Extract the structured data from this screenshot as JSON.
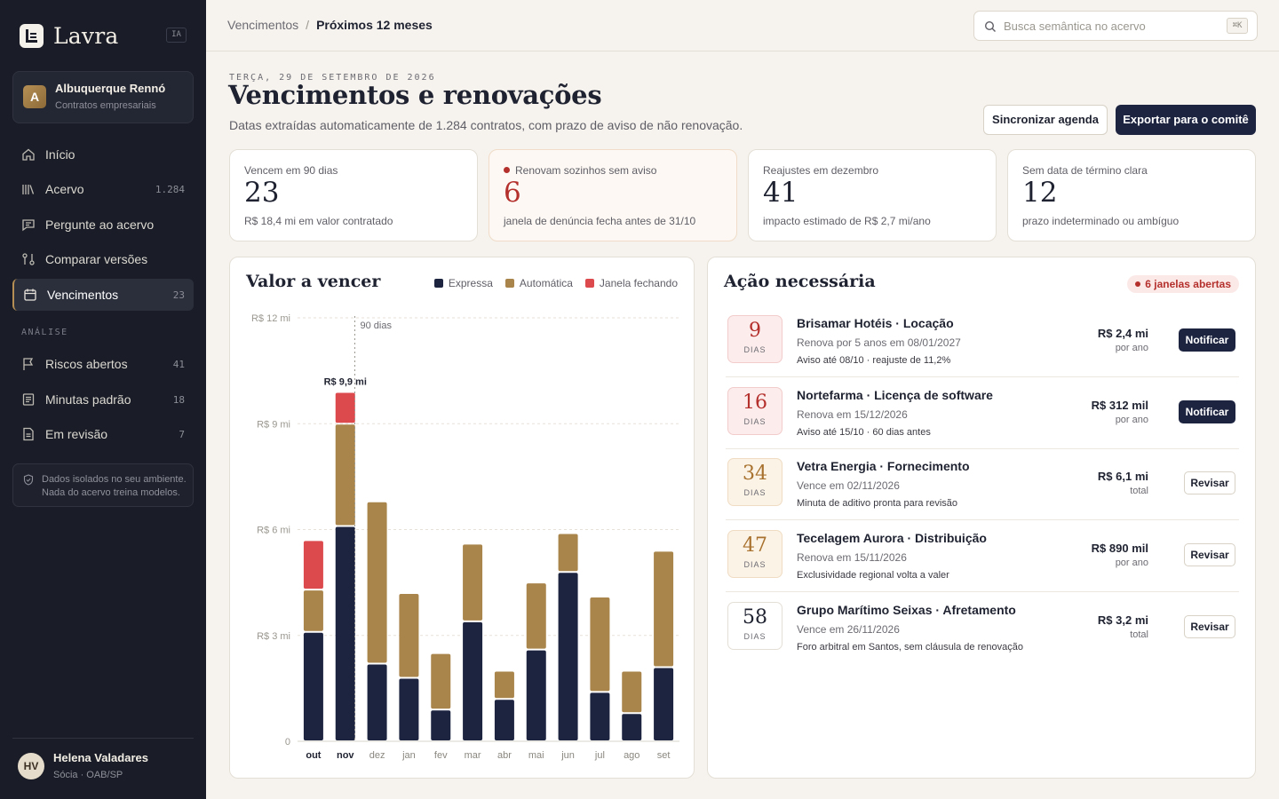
{
  "app": {
    "name": "Lavra",
    "ia_badge": "IA"
  },
  "org": {
    "initial": "A",
    "name": "Albuquerque Rennó",
    "subtitle": "Contratos empresariais"
  },
  "nav": {
    "items": [
      {
        "label": "Início",
        "count": "",
        "icon": "home-icon"
      },
      {
        "label": "Acervo",
        "count": "1.284",
        "icon": "library-icon"
      },
      {
        "label": "Pergunte ao acervo",
        "count": "",
        "icon": "chat-icon"
      },
      {
        "label": "Comparar versões",
        "count": "",
        "icon": "compare-icon"
      },
      {
        "label": "Vencimentos",
        "count": "23",
        "icon": "calendar-icon",
        "active": true
      }
    ],
    "section_label": "ANÁLISE",
    "analysis_items": [
      {
        "label": "Riscos abertos",
        "count": "41",
        "icon": "flag-icon"
      },
      {
        "label": "Minutas padrão",
        "count": "18",
        "icon": "document-icon"
      },
      {
        "label": "Em revisão",
        "count": "7",
        "icon": "file-icon"
      }
    ]
  },
  "privacy": {
    "text": "Dados isolados no seu ambiente. Nada do acervo treina modelos."
  },
  "user": {
    "initials": "HV",
    "name": "Helena Valadares",
    "role": "Sócia · OAB/SP"
  },
  "breadcrumb": {
    "parent": "Vencimentos",
    "separator": "/",
    "current": "Próximos 12 meses"
  },
  "search": {
    "placeholder": "Busca semântica no acervo",
    "shortcut": "⌘K"
  },
  "header": {
    "date": "TERÇA, 29 DE SETEMBRO DE 2026",
    "title": "Vencimentos e renovações",
    "subtitle": "Datas extraídas automaticamente de 1.284 contratos, com prazo de aviso de não renovação.",
    "sync_label": "Sincronizar agenda",
    "export_label": "Exportar para o comitê"
  },
  "stats": [
    {
      "label": "Vencem em 90 dias",
      "value": "23",
      "note": "R$ 18,4 mi em valor contratado"
    },
    {
      "label": "Renovam sozinhos sem aviso",
      "value": "6",
      "note": "janela de denúncia fecha antes de 31/10"
    },
    {
      "label": "Reajustes em dezembro",
      "value": "41",
      "note": "impacto estimado de R$ 2,7 mi/ano"
    },
    {
      "label": "Sem data de término clara",
      "value": "12",
      "note": "prazo indeterminado ou ambíguo"
    }
  ],
  "chart_panel": {
    "title": "Valor a vencer",
    "legend": [
      "Expressa",
      "Automática",
      "Janela fechando"
    ]
  },
  "chart_data": {
    "type": "bar",
    "stacked": true,
    "categories": [
      "out",
      "nov",
      "dez",
      "jan",
      "fev",
      "mar",
      "abr",
      "mai",
      "jun",
      "jul",
      "ago",
      "set"
    ],
    "series": [
      {
        "name": "Expressa",
        "color": "#1d2440",
        "values": [
          3.1,
          6.1,
          2.2,
          1.8,
          0.9,
          3.4,
          1.2,
          2.6,
          4.8,
          1.4,
          0.8,
          2.1
        ]
      },
      {
        "name": "Automática",
        "color": "#a9844b",
        "values": [
          1.2,
          2.9,
          4.6,
          2.4,
          1.6,
          2.2,
          0.8,
          1.9,
          1.1,
          2.7,
          1.2,
          3.3
        ]
      },
      {
        "name": "Janela fechando",
        "color": "#dc4a4e",
        "values": [
          1.4,
          0.9,
          0,
          0,
          0,
          0,
          0,
          0,
          0,
          0,
          0,
          0
        ]
      }
    ],
    "yticks": [
      "0",
      "R$ 3 mi",
      "R$ 6 mi",
      "R$ 9 mi",
      "R$ 12 mi"
    ],
    "ylim": [
      0,
      12
    ],
    "annotation_total": "R$ 9,9 mi",
    "marker_label": "90 dias",
    "highlighted_categories": [
      "out",
      "nov"
    ],
    "grid": true
  },
  "actions_panel": {
    "title": "Ação necessária",
    "badge": "6 janelas abertas",
    "unit": "DIAS",
    "items": [
      {
        "days": "9",
        "tone": "red",
        "title": "Brisamar Hotéis · Locação",
        "line": "Renova por 5 anos em 08/01/2027",
        "note": "Aviso até 08/10 · reajuste de 11,2%",
        "value": "R$ 2,4 mi",
        "period": "por ano",
        "button": "Notificar",
        "style": "dark"
      },
      {
        "days": "16",
        "tone": "red",
        "title": "Nortefarma · Licença de software",
        "line": "Renova em 15/12/2026",
        "note": "Aviso até 15/10 · 60 dias antes",
        "value": "R$ 312 mil",
        "period": "por ano",
        "button": "Notificar",
        "style": "dark"
      },
      {
        "days": "34",
        "tone": "amber",
        "title": "Vetra Energia · Fornecimento",
        "line": "Vence em 02/11/2026",
        "note": "Minuta de aditivo pronta para revisão",
        "value": "R$ 6,1 mi",
        "period": "total",
        "button": "Revisar",
        "style": "light"
      },
      {
        "days": "47",
        "tone": "amber",
        "title": "Tecelagem Aurora · Distribuição",
        "line": "Renova em 15/11/2026",
        "note": "Exclusividade regional volta a valer",
        "value": "R$ 890 mil",
        "period": "por ano",
        "button": "Revisar",
        "style": "light"
      },
      {
        "days": "58",
        "tone": "plain",
        "title": "Grupo Marítimo Seixas · Afretamento",
        "line": "Vence em 26/11/2026",
        "note": "Foro arbitral em Santos, sem cláusula de renovação",
        "value": "R$ 3,2 mi",
        "period": "total",
        "button": "Revisar",
        "style": "light"
      }
    ]
  }
}
